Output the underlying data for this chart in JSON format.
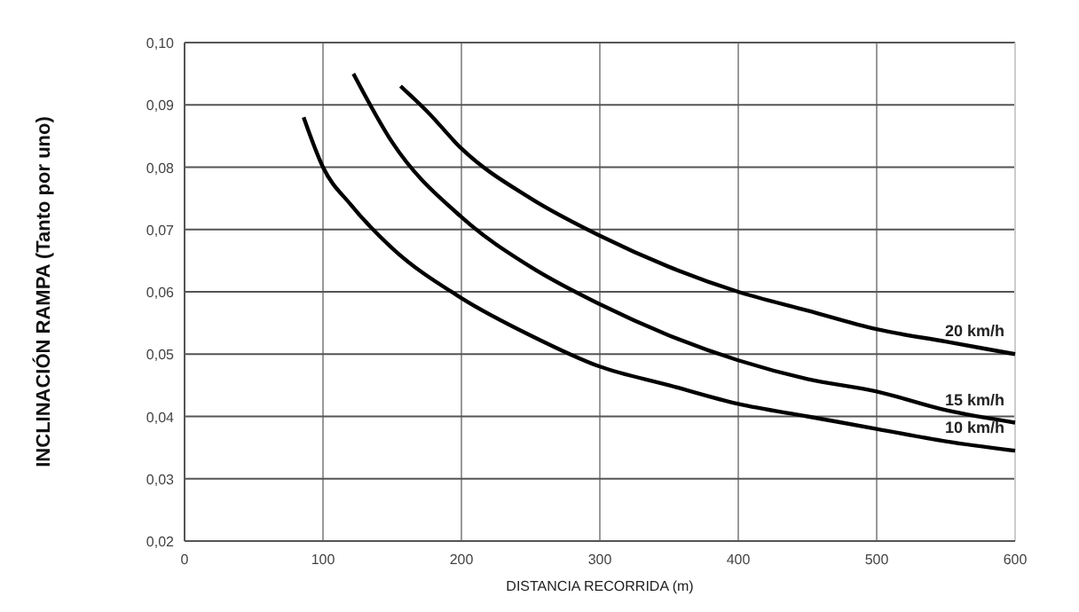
{
  "chart_data": {
    "type": "line",
    "xlabel": "DISTANCIA RECORRIDA (m)",
    "ylabel": "INCLINACIÓN RAMPA (Tanto por uno)",
    "xlim": [
      0,
      600
    ],
    "xticks": [
      0,
      100,
      200,
      300,
      400,
      500,
      600
    ],
    "ylim": [
      0.02,
      0.1
    ],
    "yticks": [
      {
        "value": 0.02,
        "label": "0,02"
      },
      {
        "value": 0.03,
        "label": "0,03"
      },
      {
        "value": 0.04,
        "label": "0,04"
      },
      {
        "value": 0.05,
        "label": "0,05"
      },
      {
        "value": 0.06,
        "label": "0,06"
      },
      {
        "value": 0.07,
        "label": "0,07"
      },
      {
        "value": 0.08,
        "label": "0,08"
      },
      {
        "value": 0.09,
        "label": "0,09"
      },
      {
        "value": 0.1,
        "label": "0,10"
      }
    ],
    "grid": true,
    "marker": "none",
    "line_style": "solid",
    "series": [
      {
        "name": "20 km/h",
        "color": "#000000",
        "x": [
          156,
          175,
          200,
          250,
          300,
          350,
          400,
          450,
          500,
          550,
          600
        ],
        "values": [
          0.093,
          0.089,
          0.083,
          0.075,
          0.069,
          0.064,
          0.06,
          0.057,
          0.054,
          0.052,
          0.05
        ]
      },
      {
        "name": "15 km/h",
        "color": "#000000",
        "x": [
          122,
          150,
          200,
          250,
          300,
          350,
          400,
          450,
          500,
          550,
          600
        ],
        "values": [
          0.095,
          0.084,
          0.072,
          0.064,
          0.058,
          0.053,
          0.049,
          0.046,
          0.044,
          0.041,
          0.039
        ]
      },
      {
        "name": "10 km/h",
        "color": "#000000",
        "x": [
          86,
          100,
          120,
          150,
          200,
          250,
          300,
          350,
          400,
          450,
          500,
          550,
          600
        ],
        "values": [
          0.088,
          0.08,
          0.074,
          0.067,
          0.059,
          0.053,
          0.048,
          0.045,
          0.042,
          0.04,
          0.038,
          0.036,
          0.0345
        ]
      }
    ]
  }
}
